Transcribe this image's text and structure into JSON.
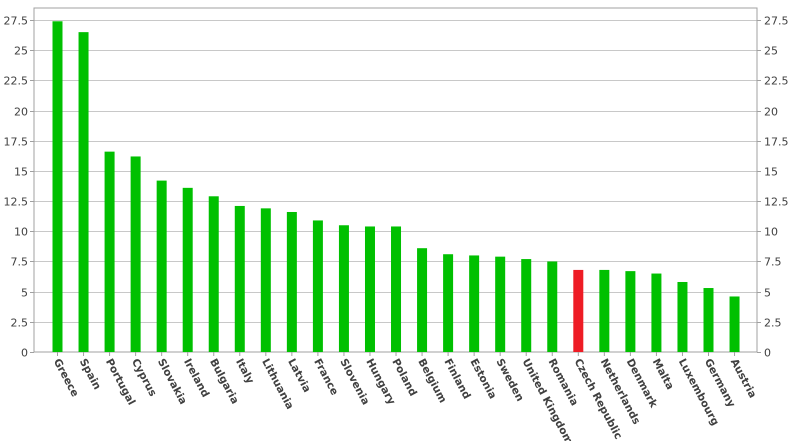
{
  "chart_data": {
    "type": "bar",
    "categories": [
      "Greece",
      "Spain",
      "Portugal",
      "Cyprus",
      "Slovakia",
      "Ireland",
      "Bulgaria",
      "Italy",
      "Lithuania",
      "Latvia",
      "France",
      "Slovenia",
      "Hungary",
      "Poland",
      "Belgium",
      "Finland",
      "Estonia",
      "Sweden",
      "United Kingdom",
      "Romania",
      "Czech Republic",
      "Netherlands",
      "Denmark",
      "Malta",
      "Luxembourg",
      "Germany",
      "Austria"
    ],
    "values": [
      27.4,
      26.5,
      16.6,
      16.2,
      14.2,
      13.6,
      12.9,
      12.1,
      11.9,
      11.6,
      10.9,
      10.5,
      10.4,
      10.4,
      8.6,
      8.1,
      8.0,
      7.9,
      7.7,
      7.5,
      6.8,
      6.8,
      6.7,
      6.5,
      5.8,
      5.3,
      4.6
    ],
    "highlight_category": "Czech Republic",
    "ylim": [
      0,
      28.5
    ],
    "yticks": [
      "0",
      "2.5",
      "5",
      "7.5",
      "10",
      "12.5",
      "15",
      "17.5",
      "20",
      "22.5",
      "25",
      "27.5"
    ],
    "title": "",
    "xlabel": "",
    "ylabel": "",
    "grid": true,
    "colors": {
      "bar": "#00c000",
      "highlight": "#ee1c25",
      "grid": "#c8c8c8",
      "axis": "#a0a0a0",
      "text": "#404040"
    }
  }
}
